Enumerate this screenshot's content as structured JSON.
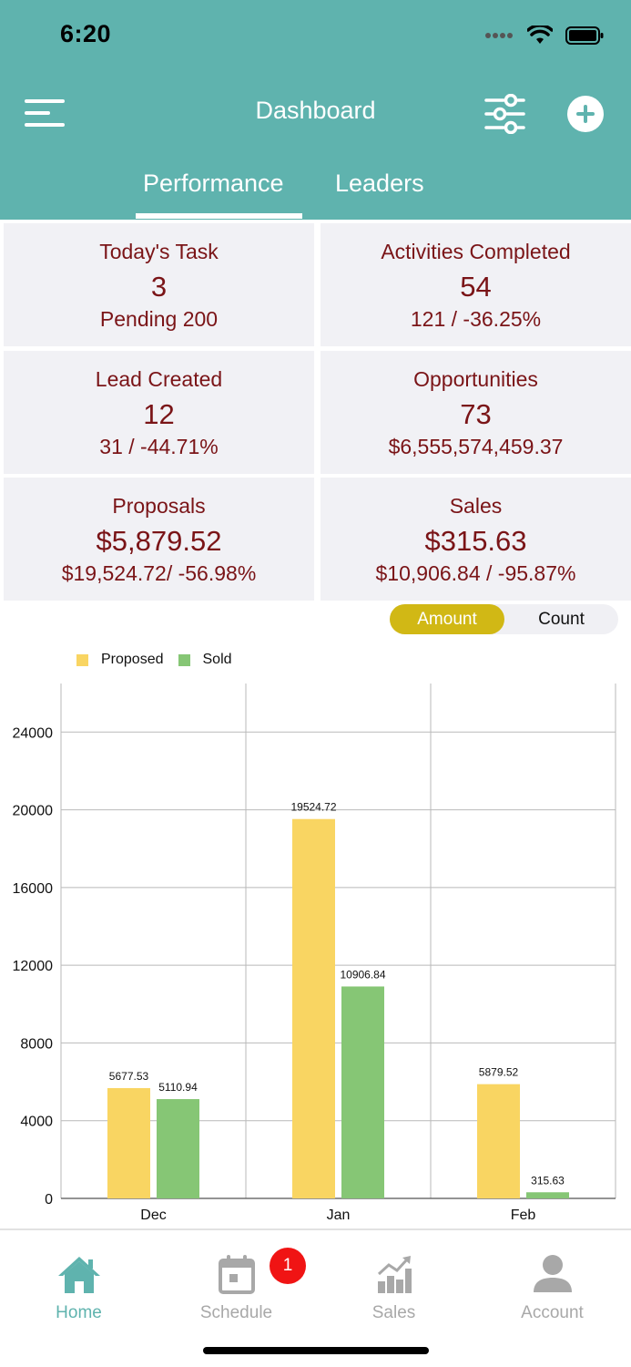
{
  "status": {
    "time": "6:20"
  },
  "header": {
    "title": "Dashboard"
  },
  "tabs": [
    {
      "label": "Performance",
      "active": true
    },
    {
      "label": "Leaders",
      "active": false
    }
  ],
  "cards": [
    {
      "label": "Today's Task",
      "value": "3",
      "sub": "Pending 200"
    },
    {
      "label": "Activities Completed",
      "value": "54",
      "sub": "121 / -36.25%"
    },
    {
      "label": "Lead Created",
      "value": "12",
      "sub": "31 / -44.71%"
    },
    {
      "label": "Opportunities",
      "value": "73",
      "sub": "$6,555,574,459.37"
    },
    {
      "label": "Proposals",
      "value": "$5,879.52",
      "sub": "$19,524.72/ -56.98%"
    },
    {
      "label": "Sales",
      "value": "$315.63",
      "sub": "$10,906.84 / -95.87%"
    }
  ],
  "toggle": {
    "amount": "Amount",
    "count": "Count",
    "selected": "Amount"
  },
  "colors": {
    "header": "#5fb3ae",
    "proposed": "#f9d562",
    "sold": "#86c675",
    "card_text": "#7a1417",
    "toggle_active": "#d1b815",
    "badge": "#f01414"
  },
  "chart_data": {
    "type": "bar",
    "categories": [
      "Dec",
      "Jan",
      "Feb"
    ],
    "series": [
      {
        "name": "Proposed",
        "values": [
          5677.53,
          19524.72,
          5879.52
        ]
      },
      {
        "name": "Sold",
        "values": [
          5110.94,
          10906.84,
          315.63
        ]
      }
    ],
    "yticks": [
      0,
      4000,
      8000,
      12000,
      16000,
      20000,
      24000
    ],
    "ylim": [
      0,
      26500
    ],
    "grid": true,
    "legend": "top-left"
  },
  "nav": {
    "items": [
      {
        "label": "Home",
        "icon": "home-icon",
        "active": true
      },
      {
        "label": "Schedule",
        "icon": "calendar-icon",
        "active": false
      },
      {
        "label": "Sales",
        "icon": "sales-chart-icon",
        "active": false
      },
      {
        "label": "Account",
        "icon": "person-icon",
        "active": false
      }
    ],
    "schedule_badge": "1"
  }
}
